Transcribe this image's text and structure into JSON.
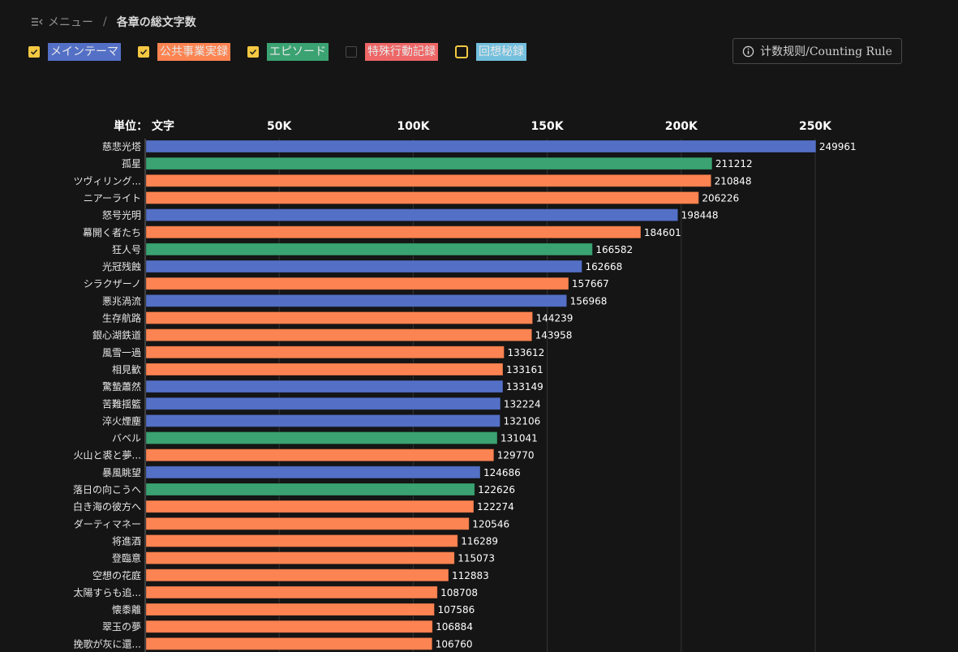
{
  "breadcrumb": {
    "menu_icon": "menu-collapse-icon",
    "menu_label": "メニュー",
    "separator": "/",
    "current": "各章の総文字数"
  },
  "legend": [
    {
      "label": "メインテーマ",
      "checked": true,
      "color": "#5470c6"
    },
    {
      "label": "公共事業実録",
      "checked": true,
      "color": "#fc8452"
    },
    {
      "label": "エピソード",
      "checked": true,
      "color": "#3ba272"
    },
    {
      "label": "特殊行動記録",
      "checked": false,
      "color": "#ee6666"
    },
    {
      "label": "回想秘録",
      "checked": false,
      "color": "#73c0de",
      "focused": true
    }
  ],
  "rule_button": {
    "icon": "info-icon",
    "label": "计数规则/Counting Rule"
  },
  "chart_data": {
    "type": "bar",
    "orientation": "horizontal",
    "unit_label": "単位： 文字",
    "xlim": [
      0,
      250000
    ],
    "x_ticks": [
      {
        "value": 50000,
        "label": "50K"
      },
      {
        "value": 100000,
        "label": "100K"
      },
      {
        "value": 150000,
        "label": "150K"
      },
      {
        "value": 200000,
        "label": "200K"
      },
      {
        "value": 250000,
        "label": "250K"
      }
    ],
    "grid": true,
    "series_colors": {
      "メインテーマ": "#5470c6",
      "公共事業実録": "#fc8452",
      "エピソード": "#3ba272"
    },
    "categories": [
      "慈悲光塔",
      "孤星",
      "ツヴィリング...",
      "ニアーライト",
      "怒号光明",
      "幕開く者たち",
      "狂人号",
      "光冠残蝕",
      "シラクザーノ",
      "悪兆渦流",
      "生存航路",
      "銀心湖鉄道",
      "風雪一過",
      "相見歓",
      "驚蟄蕭然",
      "苦難揺籃",
      "淬火煙塵",
      "バベル",
      "火山と裘と夢...",
      "暴風眺望",
      "落日の向こうへ",
      "白き海の彼方へ",
      "ダーティマネー",
      "将進酒",
      "登臨意",
      "空想の花庭",
      "太陽すらも追...",
      "懐黍離",
      "翠玉の夢",
      "挽歌が灰に還..."
    ],
    "values": [
      249961,
      211212,
      210848,
      206226,
      198448,
      184601,
      166582,
      162668,
      157667,
      156968,
      144239,
      143958,
      133612,
      133161,
      133149,
      132224,
      132106,
      131041,
      129770,
      124686,
      122626,
      122274,
      120546,
      116289,
      115073,
      112883,
      108708,
      107586,
      106884,
      106760
    ],
    "series": [
      "メインテーマ",
      "エピソード",
      "公共事業実録",
      "公共事業実録",
      "メインテーマ",
      "公共事業実録",
      "エピソード",
      "メインテーマ",
      "公共事業実録",
      "メインテーマ",
      "公共事業実録",
      "公共事業実録",
      "公共事業実録",
      "公共事業実録",
      "メインテーマ",
      "メインテーマ",
      "メインテーマ",
      "エピソード",
      "公共事業実録",
      "メインテーマ",
      "エピソード",
      "公共事業実録",
      "公共事業実録",
      "公共事業実録",
      "公共事業実録",
      "公共事業実録",
      "公共事業実録",
      "公共事業実録",
      "公共事業実録",
      "公共事業実録"
    ]
  }
}
